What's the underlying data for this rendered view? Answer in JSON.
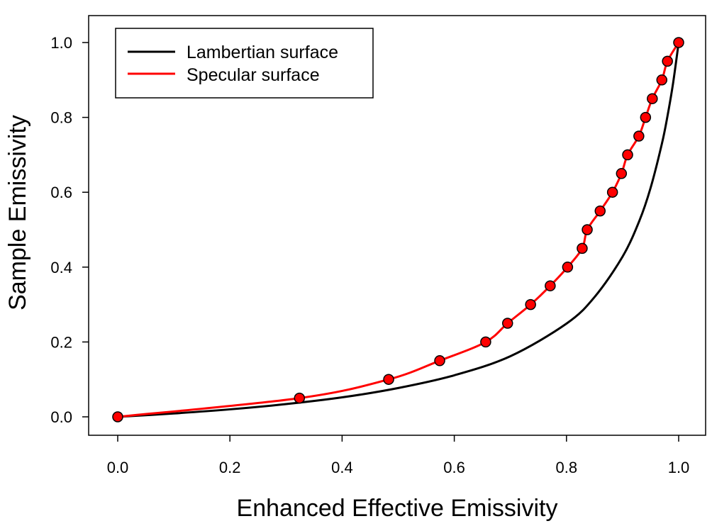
{
  "chart_data": {
    "type": "line",
    "xlabel": "Enhanced Effective Emissivity",
    "ylabel": "Sample Emissivity",
    "xlim": [
      -0.05,
      1.05
    ],
    "ylim": [
      -0.05,
      1.07
    ],
    "xticks": [
      "0.0",
      "0.2",
      "0.4",
      "0.6",
      "0.8",
      "1.0"
    ],
    "yticks": [
      "0.0",
      "0.2",
      "0.4",
      "0.6",
      "0.8",
      "1.0"
    ],
    "grid": false,
    "legend_position": "top-left",
    "series": [
      {
        "name": "Lambertian surface",
        "color": "#000000",
        "x": [
          0,
          0.1,
          0.2,
          0.3,
          0.4,
          0.5,
          0.6,
          0.7,
          0.8,
          0.85,
          0.9,
          0.93,
          0.95,
          0.97,
          0.98,
          0.99,
          1.0
        ],
        "y": [
          0,
          0.009,
          0.02,
          0.034,
          0.052,
          0.077,
          0.111,
          0.162,
          0.249,
          0.32,
          0.428,
          0.524,
          0.612,
          0.729,
          0.803,
          0.891,
          1.0
        ]
      },
      {
        "name": "Specular surface",
        "color": "#ff0000",
        "x": [
          0,
          0.324,
          0.483,
          0.574,
          0.656,
          0.695,
          0.736,
          0.771,
          0.802,
          0.828,
          0.837,
          0.86,
          0.882,
          0.898,
          0.909,
          0.929,
          0.941,
          0.953,
          0.97,
          0.98,
          1.0
        ],
        "y": [
          0,
          0.05,
          0.1,
          0.15,
          0.2,
          0.25,
          0.3,
          0.35,
          0.4,
          0.45,
          0.5,
          0.55,
          0.6,
          0.65,
          0.7,
          0.75,
          0.8,
          0.85,
          0.9,
          0.95,
          1.0
        ]
      }
    ],
    "markers": {
      "color": "#ff0000",
      "edge_color": "#000000",
      "x": [
        0,
        0.324,
        0.483,
        0.574,
        0.656,
        0.695,
        0.736,
        0.771,
        0.802,
        0.828,
        0.837,
        0.86,
        0.882,
        0.898,
        0.909,
        0.929,
        0.941,
        0.953,
        0.97,
        0.98,
        1.0
      ],
      "y": [
        0,
        0.05,
        0.1,
        0.15,
        0.2,
        0.25,
        0.3,
        0.35,
        0.4,
        0.45,
        0.5,
        0.55,
        0.6,
        0.65,
        0.7,
        0.75,
        0.8,
        0.85,
        0.9,
        0.95,
        1.0
      ]
    }
  }
}
